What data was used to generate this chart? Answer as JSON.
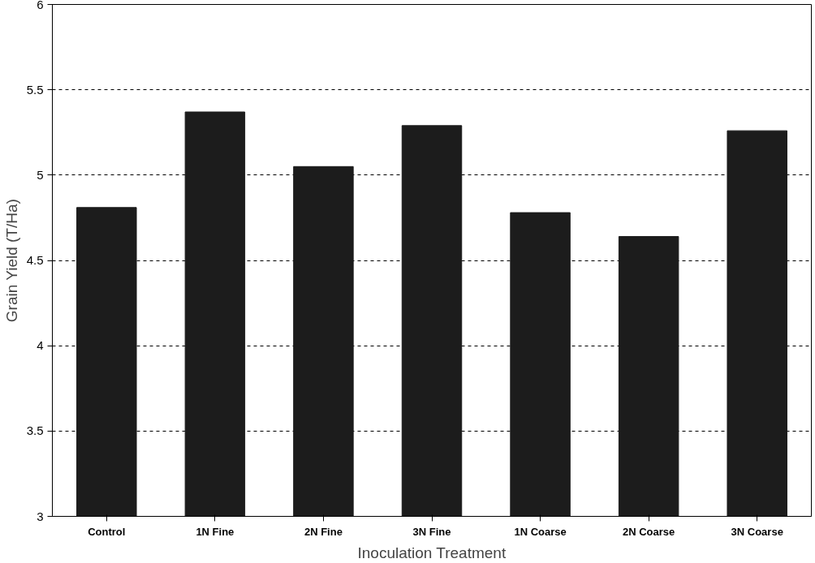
{
  "chart_data": {
    "type": "bar",
    "xlabel": "Inoculation Treatment",
    "ylabel": "Grain Yield (T/Ha)",
    "categories": [
      "Control",
      "1N Fine",
      "2N Fine",
      "3N Fine",
      "1N Coarse",
      "2N Coarse",
      "3N Coarse"
    ],
    "values": [
      4.81,
      5.37,
      5.05,
      5.29,
      4.78,
      4.64,
      5.26
    ],
    "color": "#1c1c1c",
    "ylim": [
      3,
      6
    ],
    "yticks": [
      3,
      3.5,
      4,
      4.5,
      5,
      5.5,
      6
    ],
    "grid": "y"
  }
}
